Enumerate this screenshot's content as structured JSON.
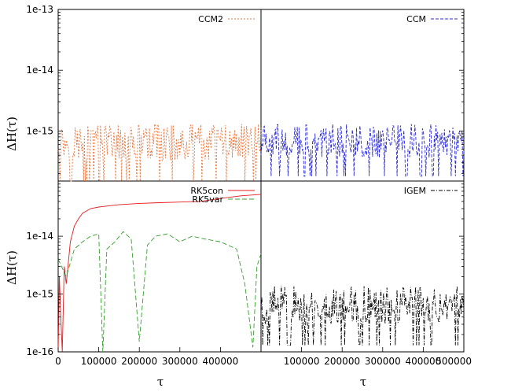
{
  "figure": {
    "ylabel": "ΔH(τ)",
    "xlabel": "τ",
    "y_ticks_top_left": [
      "1e-13",
      "1e-14",
      "1e-15"
    ],
    "y_ticks_bottom_left": [
      "1e-14",
      "1e-15",
      "1e-16"
    ],
    "x_ticks_bottom_left": [
      "0",
      "100000",
      "200000",
      "300000",
      "400000"
    ],
    "x_ticks_bottom_right": [
      "100000",
      "200000",
      "300000",
      "400000",
      "500000"
    ]
  },
  "chart_data": [
    {
      "type": "line",
      "panel": "top-left",
      "xlim": [
        0,
        500000
      ],
      "ylim": [
        1.5e-16,
        1e-13
      ],
      "y_scale": "log",
      "grid": false,
      "legend": "top-right",
      "series": [
        {
          "name": "CCM2",
          "color": "#e8743b",
          "dash": "2,2",
          "noise_level": 5e-16,
          "y_min": 1.5e-16,
          "y_max": 1.3e-15
        }
      ]
    },
    {
      "type": "line",
      "panel": "top-right",
      "xlim": [
        0,
        500000
      ],
      "ylim": [
        1.5e-16,
        1e-13
      ],
      "y_scale": "log",
      "grid": false,
      "legend": "top-right",
      "series": [
        {
          "name": "CCM",
          "color": "#2b2bd6",
          "dash": "4,2",
          "noise_level": 4e-16,
          "y_min": 1.8e-16,
          "y_max": 1.3e-15
        }
      ]
    },
    {
      "type": "line",
      "panel": "bottom-left",
      "xlim": [
        0,
        500000
      ],
      "ylim": [
        1e-16,
        9e-14
      ],
      "y_scale": "log",
      "grid": false,
      "legend": "top-right",
      "series": [
        {
          "name": "RK5con",
          "color": "#e41a1c",
          "dash": "",
          "points": [
            [
              0,
              1e-16
            ],
            [
              3000,
              2e-15
            ],
            [
              6000,
              5e-16
            ],
            [
              10000,
              1e-16
            ],
            [
              15000,
              3e-15
            ],
            [
              20000,
              1.5e-15
            ],
            [
              30000,
              8e-15
            ],
            [
              40000,
              1.5e-14
            ],
            [
              50000,
              2e-14
            ],
            [
              60000,
              2.5e-14
            ],
            [
              80000,
              3e-14
            ],
            [
              100000,
              3.2e-14
            ],
            [
              150000,
              3.5e-14
            ],
            [
              200000,
              3.7e-14
            ],
            [
              250000,
              3.8e-14
            ],
            [
              300000,
              3.9e-14
            ],
            [
              350000,
              4e-14
            ],
            [
              400000,
              4.5e-14
            ],
            [
              450000,
              5e-14
            ],
            [
              500000,
              5.3e-14
            ]
          ]
        },
        {
          "name": "RK5var",
          "color": "#33a02c",
          "dash": "6,3",
          "points": [
            [
              0,
              4e-15
            ],
            [
              20000,
              2e-15
            ],
            [
              40000,
              6e-15
            ],
            [
              60000,
              8e-15
            ],
            [
              80000,
              1e-14
            ],
            [
              100000,
              1.1e-14
            ],
            [
              110000,
              1e-16
            ],
            [
              120000,
              6e-15
            ],
            [
              140000,
              8e-15
            ],
            [
              160000,
              1.2e-14
            ],
            [
              180000,
              9e-15
            ],
            [
              200000,
              1.5e-16
            ],
            [
              220000,
              7e-15
            ],
            [
              240000,
              1e-14
            ],
            [
              270000,
              1.1e-14
            ],
            [
              300000,
              8e-15
            ],
            [
              330000,
              1e-14
            ],
            [
              360000,
              9e-15
            ],
            [
              400000,
              8e-15
            ],
            [
              440000,
              6e-15
            ],
            [
              460000,
              1.5e-15
            ],
            [
              480000,
              1.2e-16
            ],
            [
              490000,
              3e-15
            ],
            [
              500000,
              5e-15
            ]
          ]
        }
      ]
    },
    {
      "type": "line",
      "panel": "bottom-right",
      "xlim": [
        0,
        500000
      ],
      "ylim": [
        1e-16,
        9e-14
      ],
      "y_scale": "log",
      "grid": false,
      "legend": "top-right",
      "series": [
        {
          "name": "IGEM",
          "color": "#000000",
          "dash": "5,2,1,2",
          "noise_level": 5e-16,
          "y_min": 1.3e-16,
          "y_max": 1.4e-15
        }
      ]
    }
  ]
}
